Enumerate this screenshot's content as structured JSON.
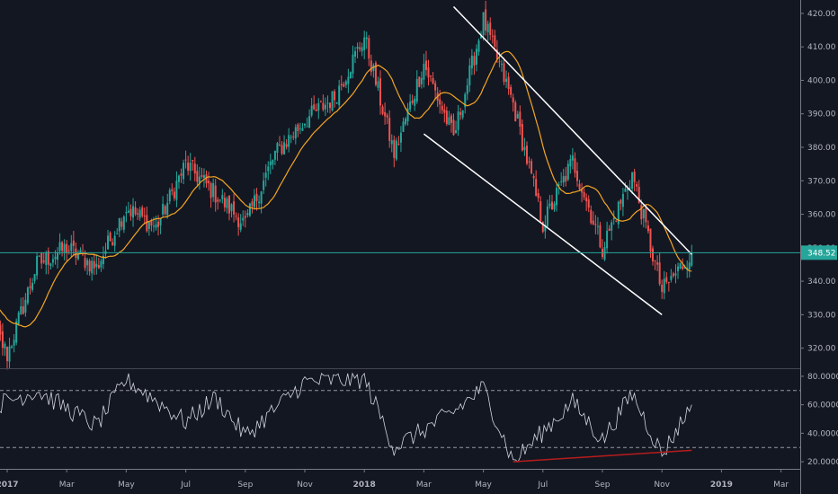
{
  "chart_data": {
    "type": "candlestick",
    "title": "",
    "colors": {
      "background": "#131722",
      "up": "#26a69a",
      "down": "#ef5350",
      "moving_average": "#f5a623",
      "trendlines": "#ffffff",
      "rsi_line": "#d1d4dc",
      "divergence_line": "#b71c1c",
      "last_price_line": "#26a69a",
      "axis_text": "#b2b5be",
      "axis_border": "#787b86"
    },
    "price_axis": {
      "ylim": [
        314,
        424
      ],
      "ticks": [
        "320.00",
        "330.00",
        "340.00",
        "350.00",
        "360.00",
        "370.00",
        "380.00",
        "390.00",
        "400.00",
        "410.00",
        "420.00"
      ]
    },
    "last_price": {
      "value": 348.52,
      "label": "348.52"
    },
    "rsi_axis": {
      "ylim": [
        15,
        85
      ],
      "ticks": [
        "20.0000",
        "40.0000",
        "60.0000",
        "80.0000"
      ],
      "levels": [
        30,
        70
      ]
    },
    "x_axis": {
      "labels": [
        "2017",
        "Mar",
        "May",
        "Jul",
        "Sep",
        "Nov",
        "2018",
        "Mar",
        "May",
        "Jul",
        "Sep",
        "Nov",
        "2019",
        "Mar"
      ],
      "bold_labels": [
        "2017",
        "2018",
        "2019"
      ]
    },
    "price_path_points": [
      {
        "x": "Dec 2016",
        "y": 338
      },
      {
        "x": "Jan 2017",
        "y": 318
      },
      {
        "x": "Feb 2017",
        "y": 345
      },
      {
        "x": "Mar 2017",
        "y": 350
      },
      {
        "x": "Apr 2017",
        "y": 344
      },
      {
        "x": "May 2017",
        "y": 362
      },
      {
        "x": "Jun 2017",
        "y": 356
      },
      {
        "x": "Jul 2017",
        "y": 375
      },
      {
        "x": "Aug 2017",
        "y": 366
      },
      {
        "x": "Sep 2017",
        "y": 357
      },
      {
        "x": "Oct 2017",
        "y": 378
      },
      {
        "x": "Nov 2017",
        "y": 388
      },
      {
        "x": "Dec 2017",
        "y": 395
      },
      {
        "x": "Jan 2018",
        "y": 413
      },
      {
        "x": "Feb 2018",
        "y": 378
      },
      {
        "x": "Mar 2018",
        "y": 405
      },
      {
        "x": "Apr 2018",
        "y": 383
      },
      {
        "x": "May 2018",
        "y": 418
      },
      {
        "x": "Jun 2018",
        "y": 393
      },
      {
        "x": "Jul 2018",
        "y": 357
      },
      {
        "x": "Aug 2018",
        "y": 376
      },
      {
        "x": "Sep 2018",
        "y": 350
      },
      {
        "x": "Oct 2018",
        "y": 372
      },
      {
        "x": "Nov 2018",
        "y": 337
      },
      {
        "x": "Dec 2018",
        "y": 348.5
      }
    ],
    "trendlines": [
      {
        "name": "upper",
        "from": {
          "x": "Apr 2018",
          "y": 422
        },
        "to": {
          "x": "Dec 2018",
          "y": 348
        }
      },
      {
        "name": "lower",
        "from": {
          "x": "Mar 2018",
          "y": 384
        },
        "to": {
          "x": "Nov 2018",
          "y": 330
        }
      }
    ],
    "rsi_path_points": [
      {
        "x": "Dec 2016",
        "y": 55
      },
      {
        "x": "Feb 2017",
        "y": 70
      },
      {
        "x": "Apr 2017",
        "y": 45
      },
      {
        "x": "May 2017",
        "y": 78
      },
      {
        "x": "Jul 2017",
        "y": 48
      },
      {
        "x": "Aug 2017",
        "y": 65
      },
      {
        "x": "Sep 2017",
        "y": 38
      },
      {
        "x": "Nov 2017",
        "y": 76
      },
      {
        "x": "Jan 2018",
        "y": 78
      },
      {
        "x": "Feb 2018",
        "y": 30
      },
      {
        "x": "Apr 2018",
        "y": 55
      },
      {
        "x": "May 2018",
        "y": 72
      },
      {
        "x": "Jun 2018",
        "y": 20
      },
      {
        "x": "Aug 2018",
        "y": 62
      },
      {
        "x": "Sep 2018",
        "y": 35
      },
      {
        "x": "Oct 2018",
        "y": 68
      },
      {
        "x": "Nov 2018",
        "y": 25
      },
      {
        "x": "Dec 2018",
        "y": 60
      }
    ],
    "rsi_divergence": {
      "from": {
        "x": "Jun 2018",
        "y": 20
      },
      "to": {
        "x": "Dec 2018",
        "y": 28
      }
    },
    "grid": false,
    "legend": "none"
  }
}
